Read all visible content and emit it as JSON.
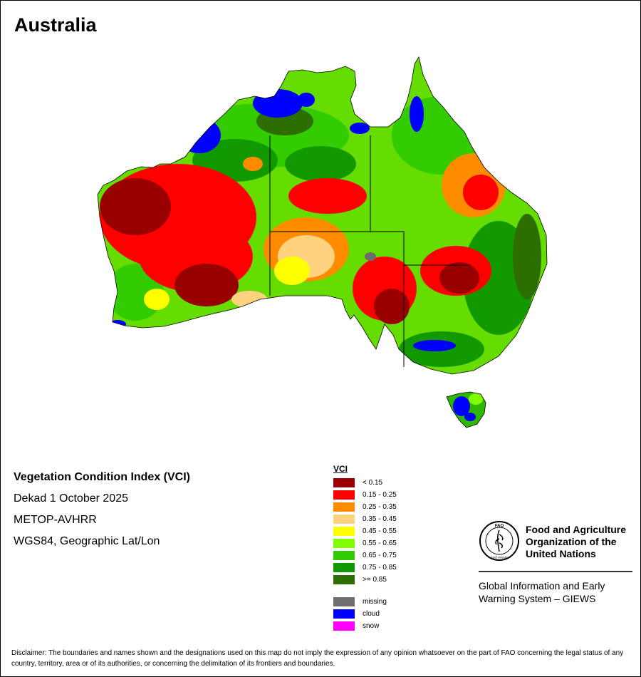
{
  "title": "Australia",
  "info": {
    "index_name": "Vegetation Condition Index (VCI)",
    "period": "Dekad 1 October 2025",
    "sensor": "METOP-AVHRR",
    "projection": "WGS84, Geographic Lat/Lon"
  },
  "legend": {
    "title": "VCI",
    "classes": [
      {
        "label": "< 0.15",
        "color": "#990000"
      },
      {
        "label": "0.15 - 0.25",
        "color": "#ff0000"
      },
      {
        "label": "0.25 - 0.35",
        "color": "#ff8c00"
      },
      {
        "label": "0.35 - 0.45",
        "color": "#ffd27f"
      },
      {
        "label": "0.45 - 0.55",
        "color": "#ffff00"
      },
      {
        "label": "0.55 - 0.65",
        "color": "#80ff00"
      },
      {
        "label": "0.65 - 0.75",
        "color": "#33cc00"
      },
      {
        "label": "0.75 - 0.85",
        "color": "#129900"
      },
      {
        "label": ">= 0.85",
        "color": "#2d6e00"
      }
    ],
    "other": [
      {
        "label": "missing",
        "color": "#6e6e6e"
      },
      {
        "label": "cloud",
        "color": "#0000ff"
      },
      {
        "label": "snow",
        "color": "#ff00ff"
      }
    ]
  },
  "fao": {
    "logo_text_top": "FAO",
    "logo_text_bottom": "FIAT PANIS",
    "name": "Food and Agriculture Organization of the United Nations",
    "system": "Global Information and Early Warning System – GIEWS"
  },
  "disclaimer": "Disclaimer: The boundaries and names shown and the designations used on this map do not imply the expression of any opinion whatsoever on the part of FAO concerning the legal status of any country, territory, area or of its authorities, or concerning the delimitation of its frontiers and boundaries."
}
